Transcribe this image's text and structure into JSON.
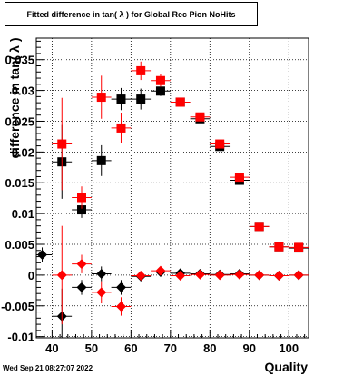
{
  "chart_data": {
    "type": "scatter",
    "title": "Fitted difference in tan( λ ) for Global Rec Pion NoHits",
    "xlabel": "Quality",
    "ylabel": "difference in tan( λ )",
    "xlim": [
      36,
      105
    ],
    "ylim": [
      -0.0102,
      0.0385
    ],
    "x_ticks": [
      40,
      50,
      60,
      70,
      80,
      90,
      100
    ],
    "y_ticks": [
      -0.01,
      -0.005,
      0,
      0.005,
      0.01,
      0.015,
      0.02,
      0.025,
      0.03,
      0.035
    ],
    "y_tick_labels": [
      "-0.01",
      "-0.005",
      "0",
      "0.005",
      "0.01",
      "0.015",
      "0.02",
      "0.025",
      "0.03",
      "0.035"
    ],
    "grid": true,
    "series": [
      {
        "marker": "square",
        "color": "#000000",
        "points": [
          {
            "x": 42.5,
            "y": 0.0184,
            "xerr": 2.5,
            "yerr": 0.006
          },
          {
            "x": 47.5,
            "y": 0.0106,
            "xerr": 2.5,
            "yerr": 0.0013
          },
          {
            "x": 52.5,
            "y": 0.0186,
            "xerr": 2.5,
            "yerr": 0.0025
          },
          {
            "x": 57.5,
            "y": 0.0286,
            "xerr": 2.5,
            "yerr": 0.0018
          },
          {
            "x": 62.5,
            "y": 0.0286,
            "xerr": 2.5,
            "yerr": 0.0017
          },
          {
            "x": 67.5,
            "y": 0.0299,
            "xerr": 2.5,
            "yerr": 0.0008
          },
          {
            "x": 72.5,
            "y": 0.0281,
            "xerr": 2.5,
            "yerr": 0.0005
          },
          {
            "x": 77.5,
            "y": 0.0254,
            "xerr": 2.5,
            "yerr": 0.0004
          },
          {
            "x": 82.5,
            "y": 0.0209,
            "xerr": 2.5,
            "yerr": 0.0004
          },
          {
            "x": 87.5,
            "y": 0.0154,
            "xerr": 2.5,
            "yerr": 0.0004
          },
          {
            "x": 92.5,
            "y": 0.0079,
            "xerr": 2.5,
            "yerr": 0.0003
          },
          {
            "x": 97.5,
            "y": 0.0046,
            "xerr": 2.5,
            "yerr": 0.0002
          },
          {
            "x": 102.5,
            "y": 0.0044,
            "xerr": 2.5,
            "yerr": 0.0002
          }
        ]
      },
      {
        "marker": "square",
        "color": "#ff0000",
        "points": [
          {
            "x": 42.5,
            "y": 0.0213,
            "xerr": 2.5,
            "yerr": 0.0075
          },
          {
            "x": 47.5,
            "y": 0.0126,
            "xerr": 2.5,
            "yerr": 0.0018
          },
          {
            "x": 52.5,
            "y": 0.0289,
            "xerr": 2.5,
            "yerr": 0.0035
          },
          {
            "x": 57.5,
            "y": 0.0239,
            "xerr": 2.5,
            "yerr": 0.0025
          },
          {
            "x": 62.5,
            "y": 0.0332,
            "xerr": 2.5,
            "yerr": 0.0015
          },
          {
            "x": 67.5,
            "y": 0.0316,
            "xerr": 2.5,
            "yerr": 0.001
          },
          {
            "x": 72.5,
            "y": 0.0281,
            "xerr": 2.5,
            "yerr": 0.0006
          },
          {
            "x": 77.5,
            "y": 0.0257,
            "xerr": 2.5,
            "yerr": 0.0005
          },
          {
            "x": 82.5,
            "y": 0.0213,
            "xerr": 2.5,
            "yerr": 0.0004
          },
          {
            "x": 87.5,
            "y": 0.0159,
            "xerr": 2.5,
            "yerr": 0.0004
          },
          {
            "x": 92.5,
            "y": 0.0079,
            "xerr": 2.5,
            "yerr": 0.0003
          },
          {
            "x": 97.5,
            "y": 0.0046,
            "xerr": 2.5,
            "yerr": 0.0002
          },
          {
            "x": 102.5,
            "y": 0.0045,
            "xerr": 2.5,
            "yerr": 0.0002
          }
        ]
      },
      {
        "marker": "diamond",
        "color": "#000000",
        "points": [
          {
            "x": 37.5,
            "y": 0.0033,
            "xerr": 2.5,
            "yerr": 0.0012
          },
          {
            "x": 42.5,
            "y": -0.0067,
            "xerr": 2.5,
            "yerr": 0.0045
          },
          {
            "x": 47.5,
            "y": -0.002,
            "xerr": 2.5,
            "yerr": 0.0012
          },
          {
            "x": 52.5,
            "y": 0.0002,
            "xerr": 2.5,
            "yerr": 0.0012
          },
          {
            "x": 57.5,
            "y": -0.002,
            "xerr": 2.5,
            "yerr": 0.0012
          },
          {
            "x": 62.5,
            "y": -0.0002,
            "xerr": 2.5,
            "yerr": 0.0008
          },
          {
            "x": 67.5,
            "y": 0.0005,
            "xerr": 2.5,
            "yerr": 0.0006
          },
          {
            "x": 72.5,
            "y": 0.0003,
            "xerr": 2.5,
            "yerr": 0.0004
          },
          {
            "x": 77.5,
            "y": 0.0002,
            "xerr": 2.5,
            "yerr": 0.0003
          },
          {
            "x": 82.5,
            "y": 0.0001,
            "xerr": 2.5,
            "yerr": 0.0002
          },
          {
            "x": 87.5,
            "y": 0.0002,
            "xerr": 2.5,
            "yerr": 0.0002
          },
          {
            "x": 92.5,
            "y": 0.0,
            "xerr": 2.5,
            "yerr": 0.0002
          },
          {
            "x": 97.5,
            "y": -0.0001,
            "xerr": 2.5,
            "yerr": 0.0002
          },
          {
            "x": 102.5,
            "y": 0.0,
            "xerr": 2.5,
            "yerr": 0.0002
          }
        ]
      },
      {
        "marker": "diamond",
        "color": "#ff0000",
        "points": [
          {
            "x": 42.5,
            "y": 0.0,
            "xerr": 2.5,
            "yerr": 0.008
          },
          {
            "x": 47.5,
            "y": 0.0018,
            "xerr": 2.5,
            "yerr": 0.0015
          },
          {
            "x": 52.5,
            "y": -0.0028,
            "xerr": 2.5,
            "yerr": 0.0018
          },
          {
            "x": 57.5,
            "y": -0.0051,
            "xerr": 2.5,
            "yerr": 0.0015
          },
          {
            "x": 62.5,
            "y": -0.0001,
            "xerr": 2.5,
            "yerr": 0.0006
          },
          {
            "x": 67.5,
            "y": 0.0007,
            "xerr": 2.5,
            "yerr": 0.0005
          },
          {
            "x": 72.5,
            "y": -0.0001,
            "xerr": 2.5,
            "yerr": 0.0004
          },
          {
            "x": 77.5,
            "y": 0.0001,
            "xerr": 2.5,
            "yerr": 0.0003
          },
          {
            "x": 82.5,
            "y": 0.0,
            "xerr": 2.5,
            "yerr": 0.0002
          },
          {
            "x": 87.5,
            "y": 0.0001,
            "xerr": 2.5,
            "yerr": 0.0002
          },
          {
            "x": 92.5,
            "y": 0.0,
            "xerr": 2.5,
            "yerr": 0.0002
          },
          {
            "x": 97.5,
            "y": -0.0001,
            "xerr": 2.5,
            "yerr": 0.0002
          },
          {
            "x": 102.5,
            "y": 0.0,
            "xerr": 2.5,
            "yerr": 0.0002
          }
        ]
      }
    ]
  },
  "footer": {
    "timestamp": "Wed Sep 21 08:27:07 2022"
  }
}
